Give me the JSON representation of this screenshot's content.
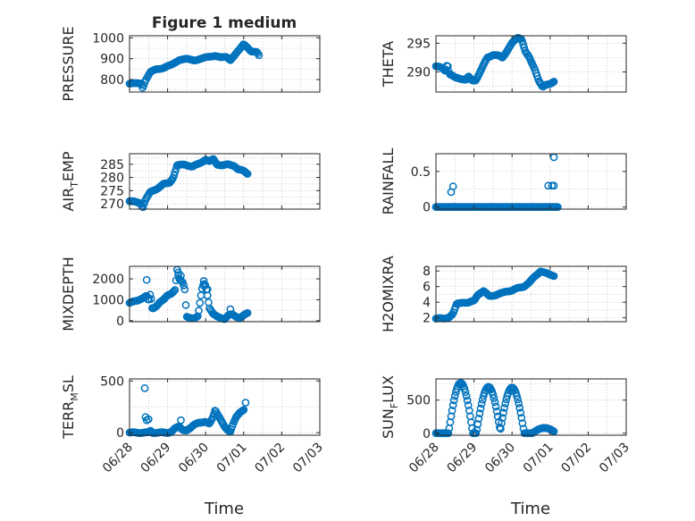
{
  "figure": {
    "title": "Figure 1 medium"
  },
  "colors": {
    "marker": "#0072BD",
    "axis": "#262626",
    "grid": "#b0b0b0"
  },
  "chart_data": [
    {
      "type": "scatter",
      "title": "Figure 1 medium",
      "ylabel": "PRESSURE",
      "ylim": [
        740,
        1010
      ],
      "yticks": [
        800,
        900,
        1000
      ],
      "xticks": [
        "06/28",
        "06/29",
        "06/30",
        "07/01",
        "07/02",
        "07/03"
      ],
      "xlim": [
        0,
        5
      ],
      "grid": true,
      "knots": [
        [
          0,
          780
        ],
        [
          0.15,
          781
        ],
        [
          0.3,
          783
        ],
        [
          0.35,
          760
        ],
        [
          0.4,
          790
        ],
        [
          0.55,
          835
        ],
        [
          0.7,
          850
        ],
        [
          0.9,
          856
        ],
        [
          1.1,
          870
        ],
        [
          1.3,
          895
        ],
        [
          1.5,
          898
        ],
        [
          1.7,
          893
        ],
        [
          1.9,
          900
        ],
        [
          2.1,
          910
        ],
        [
          2.25,
          915
        ],
        [
          2.4,
          905
        ],
        [
          2.55,
          908
        ],
        [
          2.65,
          895
        ],
        [
          2.75,
          915
        ],
        [
          2.9,
          945
        ],
        [
          3.0,
          970
        ],
        [
          3.1,
          955
        ],
        [
          3.2,
          935
        ],
        [
          3.35,
          930
        ],
        [
          3.4,
          915
        ]
      ],
      "points": 110
    },
    {
      "type": "scatter",
      "ylabel": "THETA",
      "ylim": [
        286.5,
        296.3
      ],
      "yticks": [
        290,
        295
      ],
      "xticks": [
        "06/28",
        "06/29",
        "06/30",
        "07/01",
        "07/02",
        "07/03"
      ],
      "xlim": [
        0,
        5
      ],
      "grid": true,
      "knots": [
        [
          0,
          291.0
        ],
        [
          0.15,
          290.7
        ],
        [
          0.25,
          290.2
        ],
        [
          0.3,
          291.5
        ],
        [
          0.35,
          289.7
        ],
        [
          0.5,
          289.0
        ],
        [
          0.7,
          288.8
        ],
        [
          0.8,
          288.6
        ],
        [
          0.85,
          289.2
        ],
        [
          0.95,
          288.5
        ],
        [
          1.05,
          288.6
        ],
        [
          1.2,
          290.5
        ],
        [
          1.35,
          292.5
        ],
        [
          1.5,
          293.0
        ],
        [
          1.65,
          292.8
        ],
        [
          1.75,
          292.5
        ],
        [
          1.85,
          293.5
        ],
        [
          2.0,
          295.0
        ],
        [
          2.15,
          296.0
        ],
        [
          2.25,
          295.8
        ],
        [
          2.35,
          293.5
        ],
        [
          2.45,
          292.5
        ],
        [
          2.6,
          290.5
        ],
        [
          2.7,
          288.5
        ],
        [
          2.8,
          287.3
        ],
        [
          2.9,
          287.8
        ],
        [
          3.0,
          288.0
        ],
        [
          3.1,
          288.3
        ]
      ],
      "points": 120
    },
    {
      "type": "scatter",
      "ylabel": "AIR_TEMP",
      "ylabel_main": "AIR",
      "ylabel_sub": "T",
      "ylabel_rest": "EMP",
      "ylim": [
        268,
        289
      ],
      "yticks": [
        270,
        275,
        280,
        285
      ],
      "xticks": [
        "06/28",
        "06/29",
        "06/30",
        "07/01",
        "07/02",
        "07/03"
      ],
      "xlim": [
        0,
        5
      ],
      "grid": true,
      "knots": [
        [
          0,
          271.0
        ],
        [
          0.25,
          270.5
        ],
        [
          0.3,
          270.0
        ],
        [
          0.35,
          268.7
        ],
        [
          0.4,
          271.0
        ],
        [
          0.55,
          274.5
        ],
        [
          0.75,
          276.0
        ],
        [
          0.9,
          277.5
        ],
        [
          1.05,
          278.0
        ],
        [
          1.15,
          280.0
        ],
        [
          1.25,
          284.5
        ],
        [
          1.45,
          285.0
        ],
        [
          1.65,
          284.0
        ],
        [
          1.85,
          285.5
        ],
        [
          2.0,
          286.8
        ],
        [
          2.1,
          286.0
        ],
        [
          2.2,
          287.0
        ],
        [
          2.3,
          285.0
        ],
        [
          2.45,
          284.5
        ],
        [
          2.6,
          285.0
        ],
        [
          2.75,
          284.5
        ],
        [
          2.85,
          283.0
        ],
        [
          3.0,
          282.5
        ],
        [
          3.1,
          281.5
        ]
      ],
      "points": 115
    },
    {
      "type": "scatter",
      "ylabel": "RAINFALL",
      "ylim": [
        -0.03,
        0.75
      ],
      "yticks": [
        0,
        0.5
      ],
      "ytick_labels": [
        "0",
        "0.5"
      ],
      "xticks": [
        "06/28",
        "06/29",
        "06/30",
        "07/01",
        "07/02",
        "07/03"
      ],
      "xlim": [
        0,
        5
      ],
      "grid": true,
      "baseline": 0,
      "baseline_range": [
        0,
        3.2
      ],
      "baseline_points": 130,
      "spikes": [
        [
          0.4,
          0.21
        ],
        [
          0.45,
          0.29
        ],
        [
          2.95,
          0.3
        ],
        [
          3.05,
          0.3
        ],
        [
          3.1,
          0.3
        ],
        [
          3.1,
          0.7
        ]
      ]
    },
    {
      "type": "scatter",
      "ylabel": "MIXDEPTH",
      "ylim": [
        -50,
        2600
      ],
      "yticks": [
        0,
        1000,
        2000
      ],
      "xticks": [
        "06/28",
        "06/29",
        "06/30",
        "07/01",
        "07/02",
        "07/03"
      ],
      "xlim": [
        0,
        5
      ],
      "grid": true,
      "knots": [
        [
          0,
          850
        ],
        [
          0.2,
          950
        ],
        [
          0.3,
          1050
        ],
        [
          0.4,
          1150
        ],
        [
          0.45,
          1200
        ],
        [
          0.5,
          900
        ],
        [
          0.55,
          1300
        ],
        [
          0.6,
          550
        ],
        [
          0.7,
          700
        ],
        [
          0.8,
          900
        ],
        [
          0.9,
          1000
        ],
        [
          1.0,
          1200
        ],
        [
          1.1,
          1300
        ],
        [
          1.2,
          1500
        ],
        [
          1.25,
          2450
        ],
        [
          1.3,
          2000
        ],
        [
          1.4,
          1800
        ],
        [
          1.45,
          1500
        ],
        [
          1.5,
          200
        ],
        [
          1.6,
          150
        ],
        [
          1.7,
          100
        ],
        [
          1.8,
          200
        ],
        [
          1.9,
          1500
        ],
        [
          1.95,
          1800
        ],
        [
          2.0,
          1700
        ],
        [
          2.05,
          1200
        ],
        [
          2.1,
          600
        ],
        [
          2.2,
          300
        ],
        [
          2.3,
          200
        ],
        [
          2.4,
          150
        ],
        [
          2.5,
          80
        ],
        [
          2.6,
          250
        ],
        [
          2.7,
          300
        ],
        [
          2.8,
          200
        ],
        [
          2.9,
          150
        ],
        [
          3.0,
          250
        ],
        [
          3.1,
          350
        ]
      ],
      "points": 110,
      "outliers": [
        [
          0.45,
          1950
        ],
        [
          1.28,
          2300
        ],
        [
          1.35,
          2150
        ],
        [
          1.95,
          1900
        ],
        [
          2.05,
          1500
        ],
        [
          2.65,
          550
        ]
      ]
    },
    {
      "type": "scatter",
      "ylabel": "H2OMIXRA",
      "ylim": [
        1.5,
        8.6
      ],
      "yticks": [
        2,
        4,
        6,
        8
      ],
      "xticks": [
        "06/28",
        "06/29",
        "06/30",
        "07/01",
        "07/02",
        "07/03"
      ],
      "xlim": [
        0,
        5
      ],
      "grid": true,
      "knots": [
        [
          0,
          1.9
        ],
        [
          0.2,
          1.9
        ],
        [
          0.35,
          2.1
        ],
        [
          0.45,
          2.5
        ],
        [
          0.55,
          3.8
        ],
        [
          0.7,
          4.0
        ],
        [
          0.85,
          3.9
        ],
        [
          1.0,
          4.2
        ],
        [
          1.1,
          5.0
        ],
        [
          1.25,
          5.4
        ],
        [
          1.4,
          4.8
        ],
        [
          1.55,
          4.9
        ],
        [
          1.7,
          5.1
        ],
        [
          1.85,
          5.4
        ],
        [
          2.0,
          5.5
        ],
        [
          2.15,
          5.8
        ],
        [
          2.3,
          6.0
        ],
        [
          2.45,
          6.5
        ],
        [
          2.6,
          7.3
        ],
        [
          2.75,
          8.0
        ],
        [
          2.85,
          7.8
        ],
        [
          3.0,
          7.5
        ],
        [
          3.1,
          7.4
        ]
      ],
      "points": 115
    },
    {
      "type": "scatter",
      "ylabel": "TERR_MSL",
      "ylabel_main": "TERR",
      "ylabel_sub": "M",
      "ylabel_rest": "SL",
      "ylim": [
        -25,
        520
      ],
      "yticks": [
        0,
        500
      ],
      "xticks": [
        "06/28",
        "06/29",
        "06/30",
        "07/01",
        "07/02",
        "07/03"
      ],
      "xlim": [
        0,
        5
      ],
      "grid": true,
      "knots": [
        [
          0,
          0
        ],
        [
          0.5,
          0
        ],
        [
          0.55,
          20
        ],
        [
          0.6,
          0
        ],
        [
          1.0,
          0
        ],
        [
          1.1,
          10
        ],
        [
          1.2,
          40
        ],
        [
          1.3,
          60
        ],
        [
          1.4,
          30
        ],
        [
          1.5,
          20
        ],
        [
          1.6,
          40
        ],
        [
          1.7,
          80
        ],
        [
          1.8,
          100
        ],
        [
          1.9,
          95
        ],
        [
          2.0,
          100
        ],
        [
          2.1,
          90
        ],
        [
          2.2,
          160
        ],
        [
          2.25,
          220
        ],
        [
          2.3,
          180
        ],
        [
          2.4,
          120
        ],
        [
          2.5,
          60
        ],
        [
          2.6,
          20
        ],
        [
          2.65,
          5
        ],
        [
          2.7,
          60
        ],
        [
          2.8,
          150
        ],
        [
          2.9,
          200
        ],
        [
          3.0,
          220
        ]
      ],
      "points": 120,
      "outliers": [
        [
          0.4,
          430
        ],
        [
          0.42,
          150
        ],
        [
          0.45,
          120
        ],
        [
          0.5,
          130
        ],
        [
          1.35,
          120
        ],
        [
          3.05,
          290
        ]
      ]
    },
    {
      "type": "scatter",
      "ylabel": "SUN_FLUX",
      "ylabel_main": "SUN",
      "ylabel_sub": "F",
      "ylabel_rest": "LUX",
      "ylim": [
        -30,
        820
      ],
      "yticks": [
        0,
        500
      ],
      "xticks": [
        "06/28",
        "06/29",
        "06/30",
        "07/01",
        "07/02",
        "07/03"
      ],
      "xlim": [
        0,
        5
      ],
      "grid": true,
      "points_explicit_generator": "diurnal",
      "diurnal": {
        "peaks": [
          [
            0.65,
            760
          ],
          [
            1.38,
            700
          ],
          [
            2.0,
            690
          ],
          [
            2.85,
            80
          ]
        ],
        "width": 0.32,
        "range": [
          0,
          3.1
        ],
        "points": 125
      }
    }
  ],
  "xlabels": [
    "Time",
    "Time"
  ]
}
